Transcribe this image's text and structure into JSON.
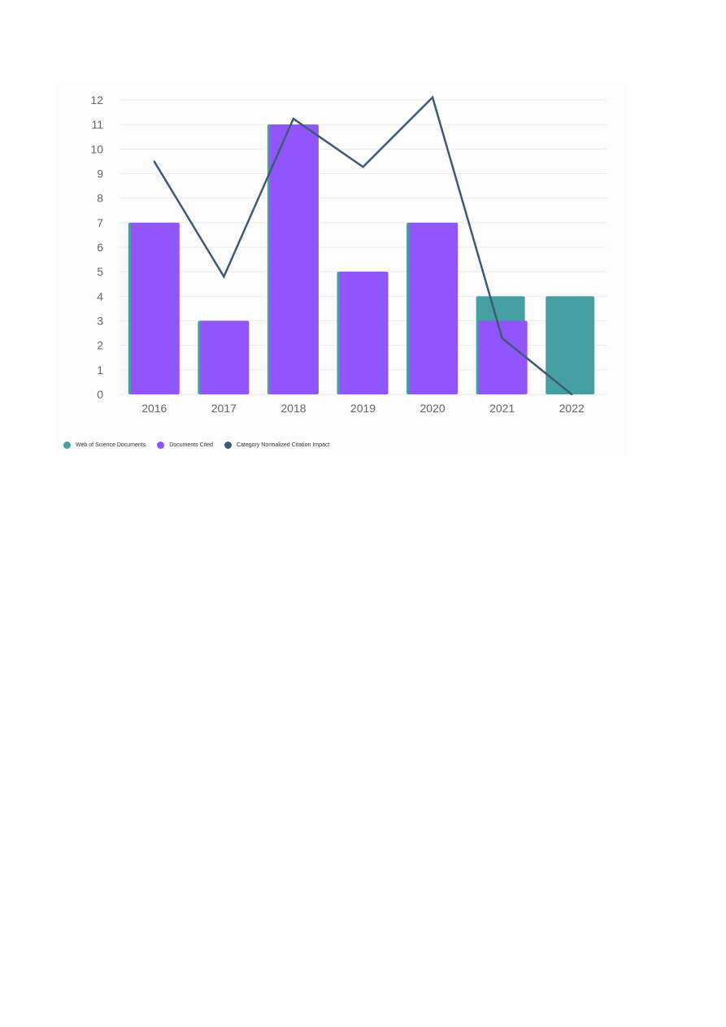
{
  "chart_data": {
    "type": "bar",
    "categories": [
      "2016",
      "2017",
      "2018",
      "2019",
      "2020",
      "2021",
      "2022"
    ],
    "series": [
      {
        "name": "Web of Science Documents",
        "type": "bar",
        "axis": "left",
        "values": [
          7,
          3,
          11,
          5,
          7,
          4,
          4
        ],
        "color": "#46a0a2"
      },
      {
        "name": "Documents Cited",
        "type": "bar",
        "axis": "left",
        "values": [
          7,
          3,
          11,
          5,
          7,
          3,
          0
        ],
        "color": "#9155fc"
      },
      {
        "name": "Category Normalized Citation Impact",
        "type": "line",
        "axis": "right",
        "values": [
          0.87,
          0.44,
          1.03,
          0.85,
          1.11,
          0.21,
          0.0
        ],
        "color": "#3d5a78"
      }
    ],
    "y_left": {
      "min": 0,
      "max": 12,
      "ticks": [
        "0",
        "1",
        "2",
        "3",
        "4",
        "5",
        "6",
        "7",
        "8",
        "9",
        "10",
        "11",
        "12"
      ]
    },
    "y_right": {
      "min": 0,
      "max": 1.1,
      "ticks": [
        "0.0",
        "0.1",
        "0.2",
        "0.3",
        "0.4",
        "0.5",
        "0.6",
        "0.7",
        "0.8",
        "0.9",
        "1.0",
        "1.1"
      ]
    },
    "grid": true,
    "legend_position": "bottom-left"
  }
}
